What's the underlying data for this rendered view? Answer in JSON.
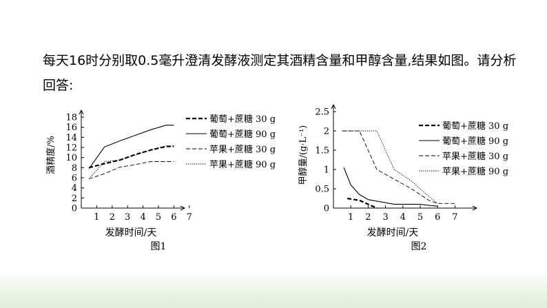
{
  "question": {
    "line1": "每天16时分别取0.5毫升澄清发酵液测定其酒精含量和甲醇含量,结果如图。请分析",
    "line2": "回答:"
  },
  "chart_data": [
    {
      "type": "line",
      "caption": "图1",
      "xlabel": "发酵时间/天",
      "ylabel": "酒精度/%",
      "xticks": [
        1,
        2,
        3,
        4,
        5,
        6,
        7
      ],
      "yticks": [
        0,
        2,
        4,
        6,
        8,
        10,
        12,
        14,
        16,
        18
      ],
      "xlim": [
        0,
        7.5
      ],
      "ylim": [
        0,
        18
      ],
      "grid": false,
      "legend_position": "right",
      "series": [
        {
          "name": "葡萄+蔗糖 30 g",
          "style": "bold-dashed",
          "x": [
            0.5,
            1.5,
            2.5,
            3.5,
            4.5,
            5.5,
            6
          ],
          "y": [
            8,
            8.8,
            9.5,
            10.6,
            11.5,
            12.2,
            12.2
          ]
        },
        {
          "name": "葡萄+蔗糖 90 g",
          "style": "solid",
          "x": [
            0.5,
            1.5,
            2.5,
            3.5,
            4.5,
            5.5,
            6
          ],
          "y": [
            7.8,
            12.1,
            13.3,
            14.4,
            15.5,
            16.4,
            16.4
          ]
        },
        {
          "name": "苹果+蔗糖 30 g",
          "style": "dashed",
          "x": [
            0.5,
            1.5,
            2.5,
            3.5,
            4.5,
            5.5,
            6
          ],
          "y": [
            5.8,
            6.8,
            8.1,
            8.6,
            9.2,
            9.2,
            9.2
          ]
        },
        {
          "name": "苹果+蔗糖 90 g",
          "style": "dotted",
          "x": [
            0.5,
            1.5,
            2.5,
            3.5,
            4.5,
            5.5,
            6
          ],
          "y": [
            5.8,
            9.2,
            9.5,
            10.5,
            11.5,
            12.3,
            12.3
          ]
        }
      ]
    },
    {
      "type": "line",
      "caption": "图2",
      "xlabel": "发酵时间/天",
      "ylabel": "甲醇量/(g·L⁻¹)",
      "xticks": [
        1,
        2,
        3,
        4,
        5,
        6,
        7
      ],
      "yticks": [
        0,
        0.5,
        1,
        1.5,
        2,
        2.5
      ],
      "xlim": [
        0,
        7.5
      ],
      "ylim": [
        0,
        2.5
      ],
      "grid": false,
      "legend_position": "top-right",
      "series": [
        {
          "name": "葡萄+蔗糖 30 g",
          "style": "bold-dashed",
          "x": [
            0.8,
            1.5,
            2.5
          ],
          "y": [
            0.25,
            0.2,
            0
          ]
        },
        {
          "name": "葡萄+蔗糖 90 g",
          "style": "solid",
          "x": [
            0.6,
            1,
            1.5,
            2,
            2.5,
            3,
            3.5,
            4,
            4.5,
            5,
            5.5,
            6
          ],
          "y": [
            1.05,
            0.6,
            0.35,
            0.22,
            0.18,
            0.14,
            0.1,
            0.1,
            0.1,
            0.1,
            0.07,
            0.05
          ]
        },
        {
          "name": "苹果+蔗糖 30 g",
          "style": "dashed",
          "x": [
            0.5,
            1.5,
            2.5,
            3.5,
            4.5,
            5.5,
            6,
            7
          ],
          "y": [
            2,
            2,
            1,
            0.75,
            0.5,
            0.2,
            0.12,
            0.12
          ]
        },
        {
          "name": "苹果+蔗糖 90 g",
          "style": "dotted",
          "x": [
            0.5,
            1.5,
            2.5,
            3.5,
            4.5,
            5.5,
            6
          ],
          "y": [
            2,
            2,
            2,
            1,
            0.7,
            0.3,
            0.12
          ]
        }
      ]
    }
  ]
}
